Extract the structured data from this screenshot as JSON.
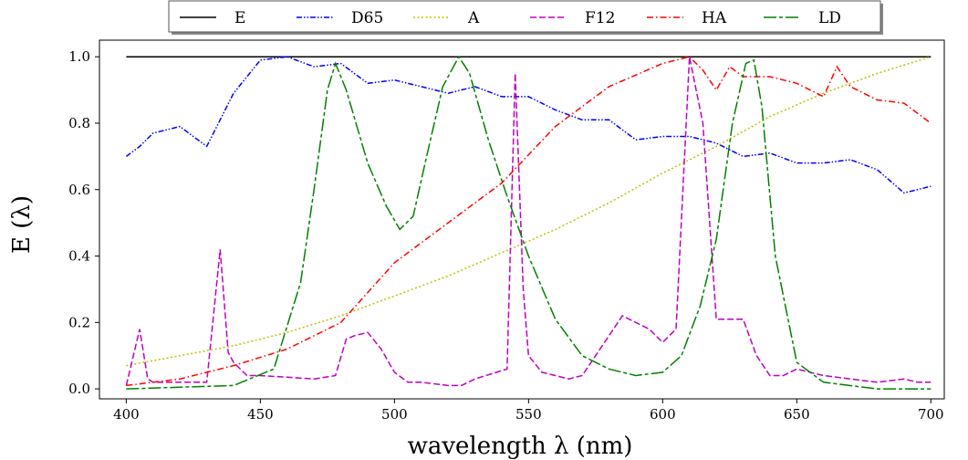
{
  "chart_data": {
    "type": "line",
    "xlabel": "wavelength λ (nm)",
    "ylabel": "E (λ)",
    "xlim": [
      390,
      705
    ],
    "ylim": [
      -0.03,
      1.05
    ],
    "xticks": [
      400,
      450,
      500,
      550,
      600,
      650,
      700
    ],
    "yticks": [
      0.0,
      0.2,
      0.4,
      0.6,
      0.8,
      1.0
    ],
    "xtick_labels": [
      "400",
      "450",
      "500",
      "550",
      "600",
      "650",
      "700"
    ],
    "ytick_labels": [
      "0.0",
      "0.2",
      "0.4",
      "0.6",
      "0.8",
      "1.0"
    ],
    "grid": false,
    "legend_position": "top-center, outside plot, single row",
    "series": [
      {
        "name": "E",
        "color": "#000000",
        "dash": "solid",
        "x": [
          400,
          700
        ],
        "y": [
          1.0,
          1.0
        ]
      },
      {
        "name": "D65",
        "color": "#0000ff",
        "dash": "dashdotdot",
        "x": [
          400,
          405,
          410,
          420,
          430,
          440,
          450,
          460,
          470,
          480,
          490,
          500,
          510,
          520,
          530,
          540,
          550,
          560,
          570,
          580,
          590,
          600,
          610,
          620,
          630,
          640,
          650,
          660,
          670,
          680,
          690,
          700
        ],
        "y": [
          0.7,
          0.73,
          0.77,
          0.79,
          0.73,
          0.89,
          0.99,
          1.0,
          0.97,
          0.98,
          0.92,
          0.93,
          0.91,
          0.89,
          0.91,
          0.88,
          0.88,
          0.84,
          0.81,
          0.81,
          0.75,
          0.76,
          0.76,
          0.74,
          0.7,
          0.71,
          0.68,
          0.68,
          0.69,
          0.66,
          0.59,
          0.61
        ]
      },
      {
        "name": "A",
        "color": "#bfbf00",
        "dash": "dotted",
        "x": [
          400,
          420,
          440,
          460,
          480,
          500,
          520,
          540,
          560,
          580,
          600,
          620,
          640,
          660,
          680,
          700
        ],
        "y": [
          0.07,
          0.1,
          0.13,
          0.17,
          0.22,
          0.28,
          0.34,
          0.41,
          0.48,
          0.56,
          0.65,
          0.73,
          0.82,
          0.89,
          0.95,
          1.0
        ]
      },
      {
        "name": "F12",
        "color": "#bf00bf",
        "dash": "dashed",
        "x": [
          400,
          405,
          408,
          410,
          420,
          430,
          435,
          438,
          440,
          445,
          450,
          460,
          470,
          478,
          482,
          485,
          490,
          495,
          500,
          505,
          510,
          520,
          525,
          530,
          542,
          545,
          548,
          550,
          555,
          560,
          565,
          570,
          580,
          585,
          590,
          595,
          600,
          605,
          610,
          615,
          620,
          625,
          630,
          635,
          640,
          645,
          650,
          660,
          670,
          680,
          690,
          695,
          700
        ],
        "y": [
          0.01,
          0.18,
          0.03,
          0.02,
          0.02,
          0.02,
          0.42,
          0.11,
          0.08,
          0.04,
          0.04,
          0.035,
          0.03,
          0.04,
          0.15,
          0.16,
          0.17,
          0.12,
          0.05,
          0.02,
          0.02,
          0.01,
          0.01,
          0.03,
          0.06,
          0.95,
          0.3,
          0.1,
          0.05,
          0.04,
          0.03,
          0.04,
          0.16,
          0.22,
          0.2,
          0.18,
          0.14,
          0.18,
          1.0,
          0.8,
          0.21,
          0.21,
          0.21,
          0.1,
          0.04,
          0.04,
          0.06,
          0.04,
          0.03,
          0.02,
          0.03,
          0.02,
          0.02
        ]
      },
      {
        "name": "HA",
        "color": "#ff0000",
        "dash": "dashdot",
        "x": [
          400,
          420,
          440,
          460,
          480,
          500,
          520,
          540,
          560,
          580,
          600,
          610,
          615,
          620,
          625,
          630,
          640,
          650,
          660,
          665,
          670,
          680,
          690,
          700
        ],
        "y": [
          0.01,
          0.03,
          0.07,
          0.12,
          0.2,
          0.38,
          0.5,
          0.62,
          0.79,
          0.91,
          0.98,
          1.0,
          0.96,
          0.9,
          0.97,
          0.94,
          0.94,
          0.92,
          0.88,
          0.97,
          0.91,
          0.87,
          0.86,
          0.8
        ]
      },
      {
        "name": "LD",
        "color": "#008000",
        "dash": "longdash",
        "x": [
          400,
          440,
          455,
          465,
          470,
          475,
          478,
          482,
          490,
          497,
          502,
          507,
          512,
          518,
          524,
          528,
          535,
          542,
          550,
          560,
          570,
          580,
          590,
          600,
          607,
          614,
          620,
          626,
          631,
          634,
          637,
          642,
          650,
          660,
          680,
          700
        ],
        "y": [
          0.0,
          0.01,
          0.06,
          0.32,
          0.6,
          0.9,
          0.98,
          0.9,
          0.68,
          0.55,
          0.48,
          0.52,
          0.7,
          0.91,
          1.0,
          0.95,
          0.75,
          0.58,
          0.4,
          0.21,
          0.1,
          0.06,
          0.04,
          0.05,
          0.1,
          0.25,
          0.45,
          0.8,
          0.98,
          0.99,
          0.85,
          0.4,
          0.08,
          0.02,
          0.0,
          0.0
        ]
      }
    ]
  }
}
